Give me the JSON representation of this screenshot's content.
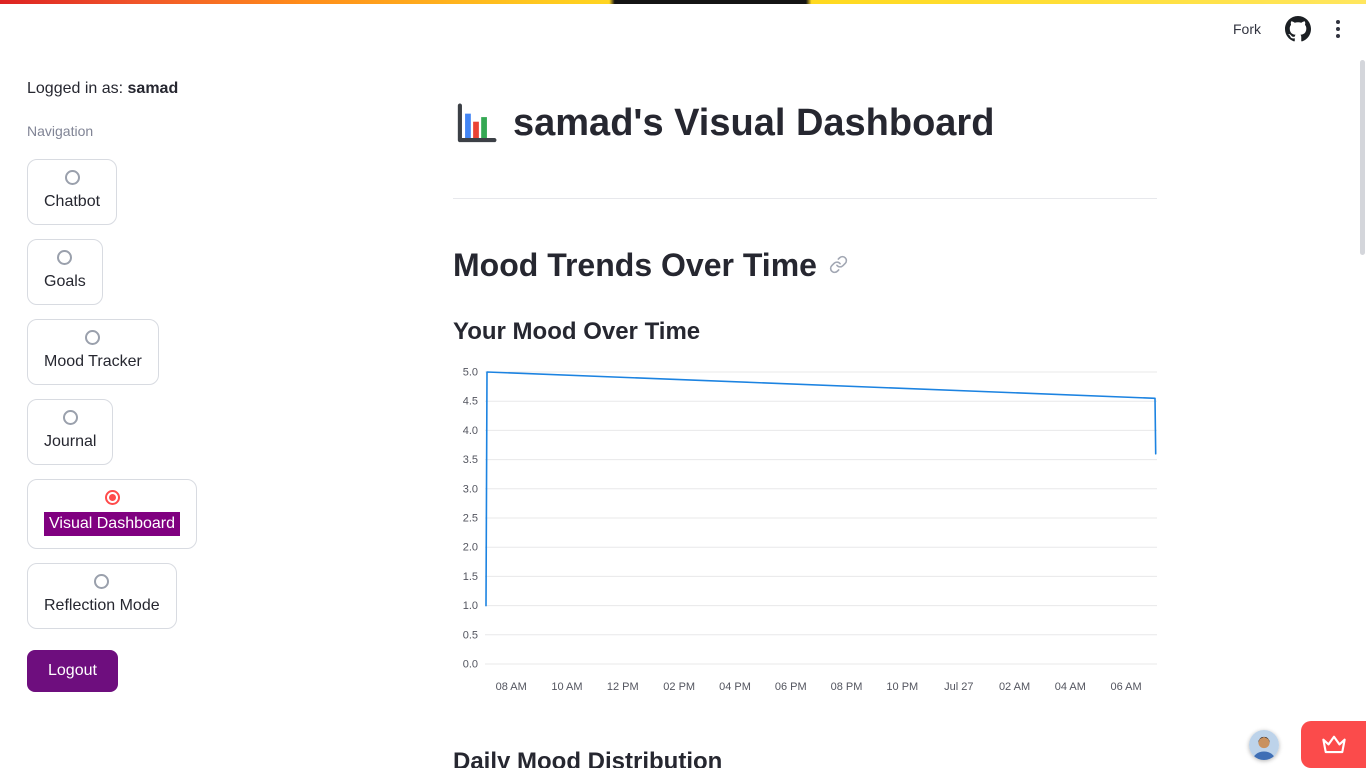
{
  "colors": {
    "primary_purple": "#800080",
    "logout_purple": "#6e0e7e",
    "radio_selected": "#ff4b4b",
    "badge_red": "#fb4b4b"
  },
  "header": {
    "fork_label": "Fork"
  },
  "sidebar": {
    "logged_in_prefix": "Logged in as:",
    "username": "samad",
    "nav_label": "Navigation",
    "items": [
      {
        "label": "Chatbot",
        "selected": false
      },
      {
        "label": "Goals",
        "selected": false
      },
      {
        "label": "Mood Tracker",
        "selected": false
      },
      {
        "label": "Journal",
        "selected": false
      },
      {
        "label": "Visual Dashboard",
        "selected": true
      },
      {
        "label": "Reflection Mode",
        "selected": false
      }
    ],
    "logout_label": "Logout"
  },
  "main": {
    "title": "samad's Visual Dashboard",
    "section_title": "Mood Trends Over Time",
    "chart_title": "Your Mood Over Time",
    "next_section_title": "Daily Mood Distribution"
  },
  "chart_data": {
    "type": "line",
    "title": "Your Mood Over Time",
    "ylim": [
      0,
      5
    ],
    "y_ticks": [
      0.0,
      0.5,
      1.0,
      1.5,
      2.0,
      2.5,
      3.0,
      3.5,
      4.0,
      4.5,
      5.0
    ],
    "x_ticks": [
      {
        "label": "08 AM",
        "pos": 0.039
      },
      {
        "label": "10 AM",
        "pos": 0.122
      },
      {
        "label": "12 PM",
        "pos": 0.205
      },
      {
        "label": "02 PM",
        "pos": 0.289
      },
      {
        "label": "04 PM",
        "pos": 0.372
      },
      {
        "label": "06 PM",
        "pos": 0.455
      },
      {
        "label": "08 PM",
        "pos": 0.538
      },
      {
        "label": "10 PM",
        "pos": 0.621
      },
      {
        "label": "Jul 27",
        "pos": 0.705
      },
      {
        "label": "02 AM",
        "pos": 0.788
      },
      {
        "label": "04 AM",
        "pos": 0.871
      },
      {
        "label": "06 AM",
        "pos": 0.954
      }
    ],
    "line_color": "#1c83e1",
    "grid": "horizontal",
    "points": [
      {
        "pos": 0.0015,
        "value": 1.0
      },
      {
        "pos": 0.003,
        "value": 5.0
      },
      {
        "pos": 0.997,
        "value": 4.55
      },
      {
        "pos": 0.998,
        "value": 3.6
      }
    ]
  }
}
